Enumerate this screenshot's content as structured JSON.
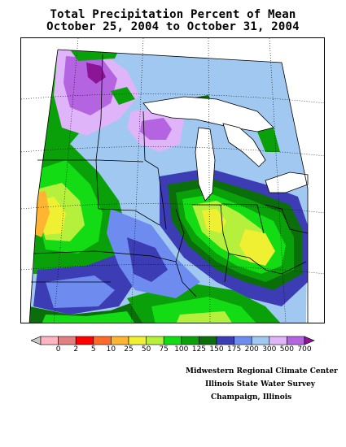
{
  "title": {
    "line1": "Total Precipitation Percent of Mean",
    "line2": "October 25, 2004 to October 31, 2004"
  },
  "legend": {
    "labels": [
      "0",
      "2",
      "5",
      "10",
      "25",
      "50",
      "75",
      "100",
      "125",
      "150",
      "175",
      "200",
      "300",
      "500",
      "700"
    ],
    "colors": [
      "#c8c8c8",
      "#ffb4c0",
      "#e08080",
      "#ff0000",
      "#ff6a28",
      "#ffb432",
      "#f0f032",
      "#b4f03c",
      "#14dc14",
      "#0aa00a",
      "#0a6e0a",
      "#3c3cb4",
      "#6e8cf0",
      "#a0c8f0",
      "#e0b4f8",
      "#b464e0",
      "#8c1496"
    ]
  },
  "credits": {
    "line1": "Midwestern Regional Climate Center",
    "line2": "Illinois State Water Survey",
    "line3": "Champaign, Illinois"
  }
}
